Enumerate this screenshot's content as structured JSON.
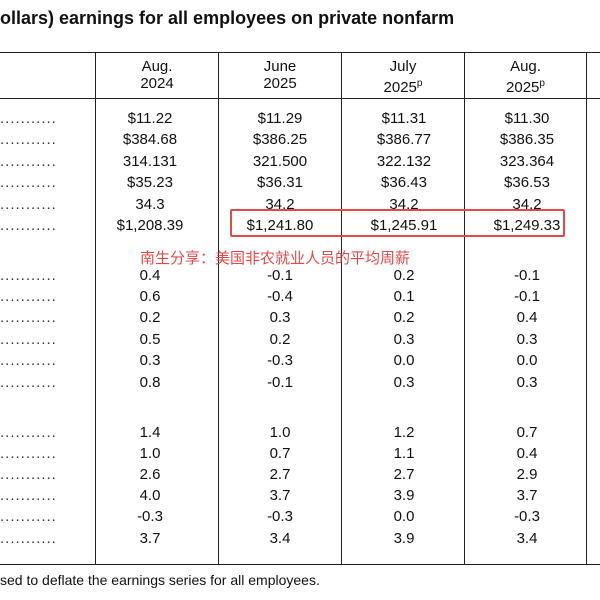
{
  "title": "ollars) earnings for all employees on private nonfarm",
  "columns": [
    {
      "line1": "Aug.",
      "line2": "2024",
      "sup": ""
    },
    {
      "line1": "June",
      "line2": "2025",
      "sup": ""
    },
    {
      "line1": "July",
      "line2": "2025",
      "sup": "p"
    },
    {
      "line1": "Aug.",
      "line2": "2025",
      "sup": "p"
    }
  ],
  "rows": [
    {
      "dots": "...........",
      "values": [
        "$11.22",
        "$11.29",
        "$11.31",
        "$11.30"
      ]
    },
    {
      "dots": "...........",
      "values": [
        "$384.68",
        "$386.25",
        "$386.77",
        "$386.35"
      ]
    },
    {
      "dots": "...........",
      "values": [
        "314.131",
        "321.500",
        "322.132",
        "323.364"
      ]
    },
    {
      "dots": "...........",
      "values": [
        "$35.23",
        "$36.31",
        "$36.43",
        "$36.53"
      ]
    },
    {
      "dots": "...........",
      "values": [
        "34.3",
        "34.2",
        "34.2",
        "34.2"
      ]
    },
    {
      "dots": "...........",
      "values": [
        "$1,208.39",
        "$1,241.80",
        "$1,245.91",
        "$1,249.33"
      ]
    },
    {
      "dots": "...........",
      "values": [
        "0.4",
        "-0.1",
        "0.2",
        "-0.1"
      ]
    },
    {
      "dots": "...........",
      "values": [
        "0.6",
        "-0.4",
        "0.1",
        "-0.1"
      ]
    },
    {
      "dots": "...........",
      "values": [
        "0.2",
        "0.3",
        "0.2",
        "0.4"
      ]
    },
    {
      "dots": "...........",
      "values": [
        "0.5",
        "0.2",
        "0.3",
        "0.3"
      ]
    },
    {
      "dots": "...........",
      "values": [
        "0.3",
        "-0.3",
        "0.0",
        "0.0"
      ]
    },
    {
      "dots": "...........",
      "values": [
        "0.8",
        "-0.1",
        "0.3",
        "0.3"
      ]
    },
    {
      "dots": "...........",
      "values": [
        "1.4",
        "1.0",
        "1.2",
        "0.7"
      ]
    },
    {
      "dots": "...........",
      "values": [
        "1.0",
        "0.7",
        "1.1",
        "0.4"
      ]
    },
    {
      "dots": "...........",
      "values": [
        "2.6",
        "2.7",
        "2.7",
        "2.9"
      ]
    },
    {
      "dots": "...........",
      "values": [
        "4.0",
        "3.7",
        "3.9",
        "3.7"
      ]
    },
    {
      "dots": "...........",
      "values": [
        "-0.3",
        "-0.3",
        "0.0",
        "-0.3"
      ]
    },
    {
      "dots": "...........",
      "values": [
        "3.7",
        "3.4",
        "3.9",
        "3.4"
      ]
    }
  ],
  "annotation": "南生分享：美国非农就业人员的平均周薪",
  "annotation_color": "#e04a4a",
  "footnote": "sed to deflate the earnings series for all employees."
}
